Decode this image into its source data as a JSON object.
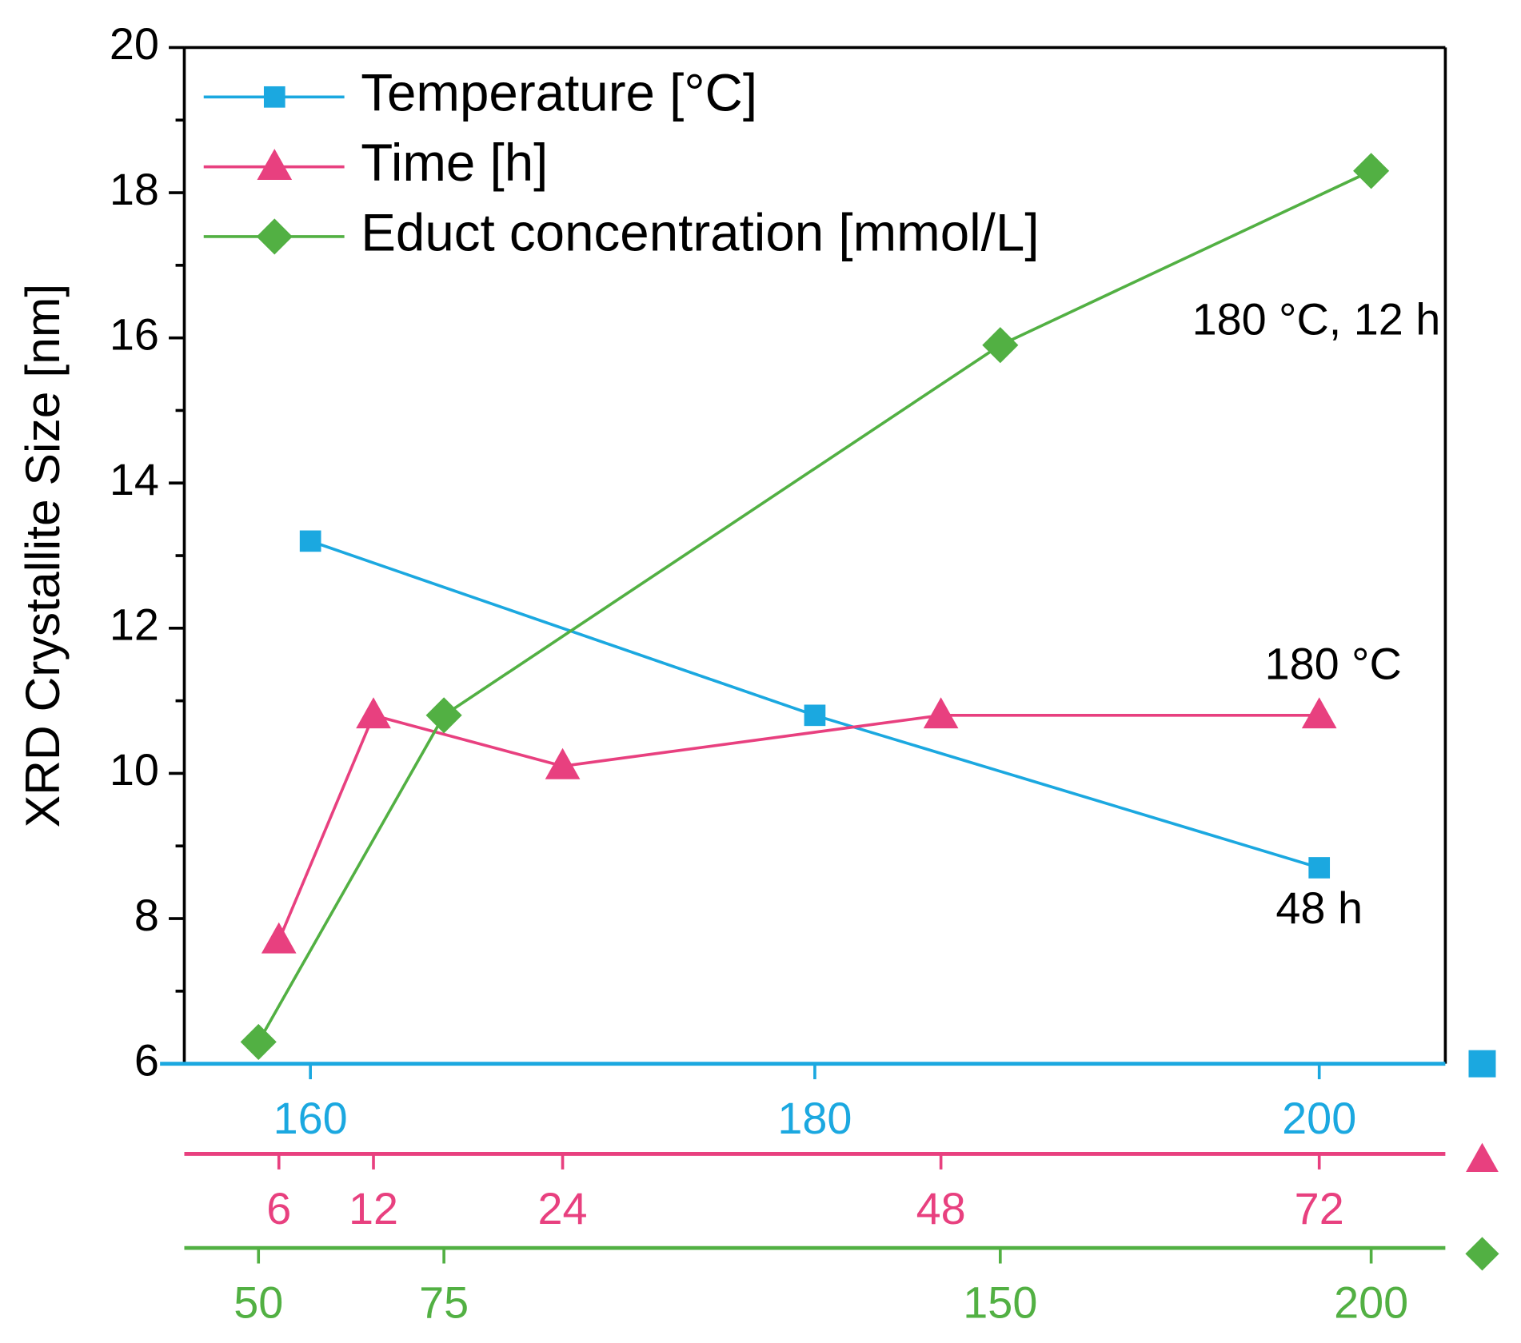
{
  "chart_data": {
    "type": "line",
    "ylabel": "XRD Crystallite Size [nm]",
    "ylim": [
      6,
      20
    ],
    "yticks": [
      6,
      8,
      10,
      12,
      14,
      16,
      18,
      20
    ],
    "yminorticks": [
      7,
      9,
      11,
      13,
      15,
      17,
      19
    ],
    "x_axes": [
      {
        "xlim": [
          155,
          205
        ],
        "xticks": [
          160,
          180,
          200
        ],
        "color": "#1ba8e0"
      },
      {
        "xlim": [
          0,
          80
        ],
        "xticks": [
          6,
          12,
          24,
          48,
          72
        ],
        "color": "#e8407f"
      },
      {
        "xlim": [
          40,
          210
        ],
        "xticks": [
          50,
          75,
          150,
          200
        ],
        "color": "#52b043"
      }
    ],
    "series": [
      {
        "name": "Temperature [°C]",
        "color": "#1ba8e0",
        "marker": "square",
        "xaxis": 0,
        "x": [
          160,
          180,
          200
        ],
        "values": [
          13.2,
          10.8,
          8.7
        ]
      },
      {
        "name": "Time [h]",
        "color": "#e8407f",
        "marker": "triangle",
        "xaxis": 1,
        "x": [
          6,
          12,
          24,
          48,
          72
        ],
        "values": [
          7.7,
          10.8,
          10.1,
          10.8,
          10.8
        ]
      },
      {
        "name": "Educt concentration [mmol/L]",
        "color": "#52b043",
        "marker": "diamond",
        "xaxis": 2,
        "x": [
          50,
          75,
          150,
          200
        ],
        "values": [
          6.3,
          10.8,
          15.9,
          18.3
        ]
      }
    ],
    "annotations": [
      "180 °C, 12 h",
      "180 °C",
      "48 h"
    ],
    "legend": "upper left"
  }
}
